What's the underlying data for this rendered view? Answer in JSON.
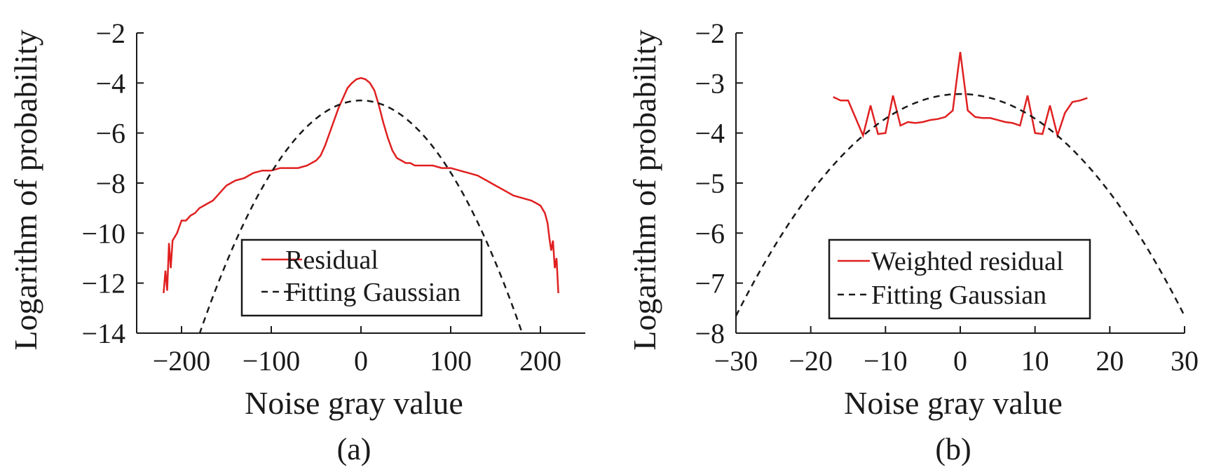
{
  "chart_data": [
    {
      "type": "line",
      "panel_label": "(a)",
      "xlabel": "Noise gray value",
      "ylabel": "Logarithm of probability",
      "xlim": [
        -250,
        250
      ],
      "ylim": [
        -14,
        -2
      ],
      "xticks": [
        -200,
        -100,
        0,
        100,
        200
      ],
      "xtick_labels": [
        "−200",
        "−100",
        "0",
        "100",
        "200"
      ],
      "yticks": [
        -2,
        -4,
        -6,
        -8,
        -10,
        -12,
        -14
      ],
      "ytick_labels": [
        "−2",
        "−4",
        "−6",
        "−8",
        "−10",
        "−12",
        "−14"
      ],
      "legend_position": "lower center",
      "series": [
        {
          "name": "Residual",
          "color": "#e02020",
          "style": "solid",
          "x": [
            -220,
            -218,
            -216,
            -214,
            -212,
            -210,
            -205,
            -200,
            -195,
            -190,
            -185,
            -180,
            -175,
            -170,
            -165,
            -160,
            -155,
            -150,
            -140,
            -130,
            -120,
            -110,
            -100,
            -90,
            -80,
            -70,
            -60,
            -50,
            -45,
            -40,
            -35,
            -30,
            -25,
            -20,
            -15,
            -10,
            -5,
            0,
            5,
            10,
            15,
            20,
            25,
            30,
            35,
            40,
            45,
            50,
            55,
            60,
            70,
            80,
            90,
            100,
            110,
            120,
            130,
            140,
            150,
            160,
            170,
            180,
            190,
            200,
            205,
            208,
            210,
            212,
            214,
            216,
            218,
            220
          ],
          "y": [
            -12.4,
            -11.5,
            -12.3,
            -10.4,
            -11.4,
            -10.3,
            -10.0,
            -9.5,
            -9.5,
            -9.3,
            -9.2,
            -9.0,
            -8.9,
            -8.8,
            -8.7,
            -8.5,
            -8.3,
            -8.1,
            -7.9,
            -7.8,
            -7.6,
            -7.5,
            -7.5,
            -7.4,
            -7.4,
            -7.4,
            -7.3,
            -7.1,
            -6.9,
            -6.5,
            -6.0,
            -5.5,
            -5.0,
            -4.6,
            -4.2,
            -4.0,
            -3.85,
            -3.8,
            -3.85,
            -4.0,
            -4.3,
            -4.9,
            -5.6,
            -6.2,
            -6.7,
            -7.0,
            -7.1,
            -7.2,
            -7.2,
            -7.3,
            -7.3,
            -7.3,
            -7.4,
            -7.4,
            -7.5,
            -7.6,
            -7.7,
            -7.9,
            -8.1,
            -8.3,
            -8.5,
            -8.6,
            -8.7,
            -8.9,
            -9.2,
            -9.6,
            -10.2,
            -10.7,
            -10.3,
            -11.4,
            -11.0,
            -12.4
          ]
        },
        {
          "name": "Fitting Gaussian",
          "color": "#1a1a1a",
          "style": "dashed",
          "gaussian": {
            "peak": -4.7,
            "curvature": 0.000288
          },
          "x_range": [
            -180,
            180
          ]
        }
      ]
    },
    {
      "type": "line",
      "panel_label": "(b)",
      "xlabel": "Noise gray value",
      "ylabel": "Logarithm of probability",
      "xlim": [
        -30,
        30
      ],
      "ylim": [
        -8,
        -2
      ],
      "xticks": [
        -30,
        -20,
        -10,
        0,
        10,
        20,
        30
      ],
      "xtick_labels": [
        "−30",
        "−20",
        "−10",
        "0",
        "10",
        "20",
        "30"
      ],
      "yticks": [
        -2,
        -3,
        -4,
        -5,
        -6,
        -7,
        -8
      ],
      "ytick_labels": [
        "−2",
        "−3",
        "−4",
        "−5",
        "−6",
        "−7",
        "−8"
      ],
      "legend_position": "lower center",
      "series": [
        {
          "name": "Weighted residual",
          "color": "#e02020",
          "style": "solid",
          "x": [
            -17,
            -16,
            -15,
            -14,
            -13,
            -12,
            -11,
            -10,
            -9,
            -8,
            -7,
            -6,
            -5,
            -4,
            -3,
            -2,
            -1,
            0,
            1,
            2,
            3,
            4,
            5,
            6,
            7,
            8,
            9,
            10,
            11,
            12,
            13,
            14,
            15,
            16,
            17
          ],
          "y": [
            -3.28,
            -3.35,
            -3.35,
            -3.7,
            -4.05,
            -3.45,
            -4.02,
            -4.0,
            -3.25,
            -3.85,
            -3.78,
            -3.8,
            -3.78,
            -3.74,
            -3.72,
            -3.68,
            -3.55,
            -2.38,
            -3.55,
            -3.68,
            -3.7,
            -3.7,
            -3.74,
            -3.78,
            -3.8,
            -3.85,
            -3.25,
            -4.0,
            -4.02,
            -3.45,
            -4.05,
            -3.6,
            -3.38,
            -3.35,
            -3.3
          ]
        },
        {
          "name": "Fitting Gaussian",
          "color": "#1a1a1a",
          "style": "dashed",
          "gaussian": {
            "peak": -3.22,
            "curvature": 0.00493
          },
          "x_range": [
            -30,
            30
          ]
        }
      ]
    }
  ]
}
